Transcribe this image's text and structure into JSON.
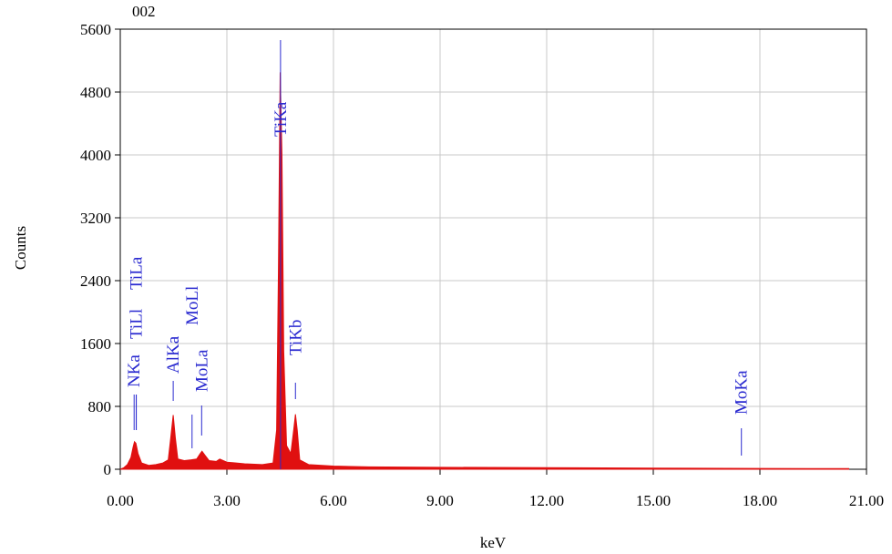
{
  "chart_data": {
    "type": "area",
    "title": "002",
    "x_label": "keV",
    "y_label": "Counts",
    "color": "#e01010",
    "marker_color": "#2a2ad0",
    "grid": true,
    "xlim": [
      0,
      21
    ],
    "ylim": [
      0,
      5600
    ],
    "xticks": [
      {
        "value": 0,
        "label": "0.00"
      },
      {
        "value": 3,
        "label": "3.00"
      },
      {
        "value": 6,
        "label": "6.00"
      },
      {
        "value": 9,
        "label": "9.00"
      },
      {
        "value": 12,
        "label": "12.00"
      },
      {
        "value": 15,
        "label": "15.00"
      },
      {
        "value": 18,
        "label": "18.00"
      },
      {
        "value": 21,
        "label": "21.00"
      }
    ],
    "yticks": [
      0,
      800,
      1600,
      2400,
      3200,
      4000,
      4800,
      5600
    ],
    "x": [
      0.0,
      0.1,
      0.2,
      0.3,
      0.36,
      0.4,
      0.44,
      0.5,
      0.6,
      0.8,
      1.0,
      1.2,
      1.35,
      1.42,
      1.49,
      1.55,
      1.62,
      1.8,
      2.0,
      2.15,
      2.25,
      2.3,
      2.38,
      2.5,
      2.7,
      2.8,
      3.0,
      3.5,
      4.0,
      4.3,
      4.4,
      4.45,
      4.5,
      4.55,
      4.6,
      4.68,
      4.8,
      4.88,
      4.93,
      4.98,
      5.05,
      5.3,
      6.0,
      7.0,
      9.0,
      12.0,
      15.0,
      18.0,
      20.5
    ],
    "values": [
      0,
      20,
      60,
      150,
      280,
      350,
      330,
      200,
      80,
      50,
      60,
      80,
      120,
      400,
      690,
      400,
      130,
      110,
      120,
      130,
      200,
      230,
      180,
      110,
      100,
      130,
      90,
      70,
      60,
      80,
      500,
      2500,
      5050,
      4000,
      1500,
      300,
      200,
      500,
      700,
      500,
      120,
      60,
      40,
      30,
      25,
      20,
      15,
      10,
      8
    ],
    "markers": [
      {
        "label": "NKa",
        "x": 0.39
      },
      {
        "label": "TiLl",
        "x": 0.45
      },
      {
        "label": "TiLa",
        "x": 0.45
      },
      {
        "label": "AlKa",
        "x": 1.49
      },
      {
        "label": "MoLl",
        "x": 2.02
      },
      {
        "label": "MoLa",
        "x": 2.29
      },
      {
        "label": "TiKa",
        "x": 4.51
      },
      {
        "label": "TiKb",
        "x": 4.93
      },
      {
        "label": "MoKa",
        "x": 17.48
      }
    ]
  }
}
